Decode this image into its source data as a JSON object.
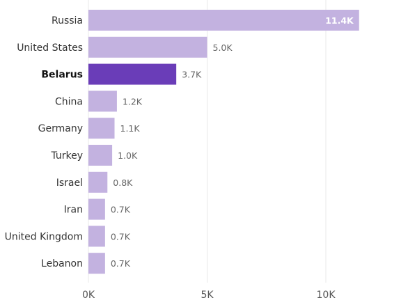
{
  "chart_data": {
    "type": "bar",
    "orientation": "horizontal",
    "categories": [
      "Russia",
      "United States",
      "Belarus",
      "China",
      "Germany",
      "Turkey",
      "Israel",
      "Iran",
      "United Kingdom",
      "Lebanon"
    ],
    "values": [
      11400,
      5000,
      3700,
      1200,
      1100,
      1000,
      800,
      700,
      700,
      700
    ],
    "value_labels": [
      "11.4K",
      "5.0K",
      "3.7K",
      "1.2K",
      "1.1K",
      "1.0K",
      "0.8K",
      "0.7K",
      "0.7K",
      "0.7K"
    ],
    "highlighted_category": "Belarus",
    "xlim": [
      0,
      12000
    ],
    "x_ticks": [
      0,
      5000,
      10000
    ],
    "x_tick_labels": [
      "0K",
      "5K",
      "10K"
    ],
    "grid": true,
    "colors": {
      "bar": "#c3b2e0",
      "highlight": "#6a3db8"
    },
    "title": "",
    "xlabel": "",
    "ylabel": ""
  }
}
